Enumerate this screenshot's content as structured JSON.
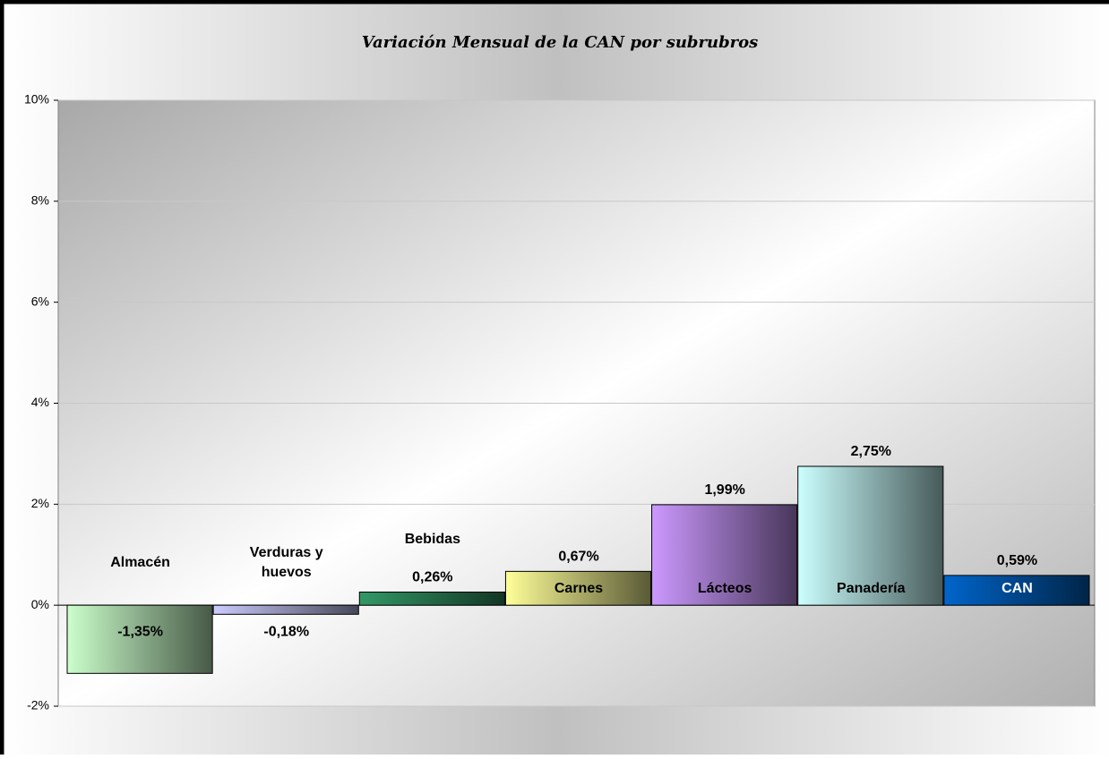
{
  "chart_data": {
    "type": "bar",
    "title": "Variación Mensual de la CAN por subrubros",
    "categories": [
      "Almacén",
      "Verduras y huevos",
      "Bebidas",
      "Carnes",
      "Lácteos",
      "Panadería",
      "CAN"
    ],
    "values": [
      -1.35,
      -0.18,
      0.26,
      0.67,
      1.99,
      2.75,
      0.59
    ],
    "value_labels": [
      "-1,35%",
      "-0,18%",
      "0,26%",
      "0,67%",
      "1,99%",
      "2,75%",
      "0,59%"
    ],
    "colors": [
      "#ccffcc",
      "#ccccff",
      "#339966",
      "#ffff99",
      "#cc99ff",
      "#ccffff",
      "#0066cc"
    ],
    "ylim": [
      -2,
      10
    ],
    "yticks": [
      {
        "value": -2,
        "label": "-2%"
      },
      {
        "value": 0,
        "label": "0%"
      },
      {
        "value": 2,
        "label": "2%"
      },
      {
        "value": 4,
        "label": "4%"
      },
      {
        "value": 6,
        "label": "6%"
      },
      {
        "value": 8,
        "label": "8%"
      },
      {
        "value": 10,
        "label": "10%"
      }
    ],
    "grid": true
  }
}
